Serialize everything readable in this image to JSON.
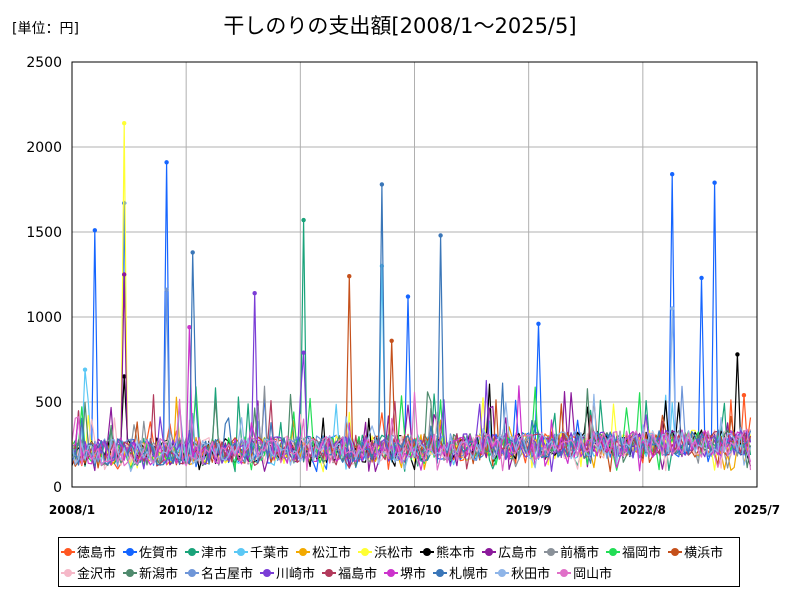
{
  "header": {
    "unit": "[単位：円]"
  },
  "chart_data": {
    "type": "line",
    "title": "干しのりの支出額[2008/1～2025/5]",
    "xlabel": "",
    "ylabel": "",
    "ylim": [
      0,
      2500
    ],
    "yticks": [
      "0",
      "500",
      "1000",
      "1500",
      "2000",
      "2500"
    ],
    "xlim": [
      "2008/1",
      "2025/7"
    ],
    "xticks": [
      "2008/1",
      "2010/12",
      "2013/11",
      "2016/10",
      "2019/9",
      "2022/8",
      "2025/7"
    ],
    "grid": true,
    "legend_position": "bottom",
    "baseline_range": [
      120,
      350
    ],
    "series": [
      {
        "name": "徳島市",
        "color": "#ff5722",
        "peaks": [
          [
            "2025/3",
            540
          ]
        ]
      },
      {
        "name": "佐賀市",
        "color": "#1565ff",
        "peaks": [
          [
            "2008/8",
            1510
          ],
          [
            "2009/5",
            1670
          ],
          [
            "2010/6",
            1910
          ],
          [
            "2016/8",
            1120
          ],
          [
            "2019/12",
            960
          ],
          [
            "2023/5",
            1840
          ],
          [
            "2024/2",
            1230
          ],
          [
            "2024/6",
            1790
          ]
        ]
      },
      {
        "name": "津市",
        "color": "#1aa37a",
        "peaks": [
          [
            "2013/12",
            1570
          ]
        ]
      },
      {
        "name": "千葉市",
        "color": "#5bc8f5",
        "peaks": [
          [
            "2008/5",
            690
          ],
          [
            "2015/12",
            1300
          ]
        ]
      },
      {
        "name": "松江市",
        "color": "#f2a900",
        "peaks": []
      },
      {
        "name": "浜松市",
        "color": "#ffff33",
        "peaks": [
          [
            "2009/5",
            2140
          ]
        ]
      },
      {
        "name": "熊本市",
        "color": "#000000",
        "peaks": [
          [
            "2009/5",
            650
          ],
          [
            "2025/1",
            780
          ]
        ]
      },
      {
        "name": "広島市",
        "color": "#8b1a9b",
        "peaks": [
          [
            "2009/5",
            1250
          ]
        ]
      },
      {
        "name": "前橋市",
        "color": "#8a9199",
        "peaks": []
      },
      {
        "name": "福岡市",
        "color": "#22dd55",
        "peaks": []
      },
      {
        "name": "横浜市",
        "color": "#c5501b",
        "peaks": [
          [
            "2015/2",
            1240
          ],
          [
            "2016/3",
            860
          ]
        ]
      },
      {
        "name": "金沢市",
        "color": "#f5b8c8",
        "peaks": []
      },
      {
        "name": "新潟市",
        "color": "#4f8a6d",
        "peaks": []
      },
      {
        "name": "名古屋市",
        "color": "#6f96d8",
        "peaks": [
          [
            "2010/6",
            1160
          ]
        ]
      },
      {
        "name": "川崎市",
        "color": "#7a3dd6",
        "peaks": [
          [
            "2012/9",
            1140
          ],
          [
            "2013/12",
            790
          ]
        ]
      },
      {
        "name": "福島市",
        "color": "#b23a5c",
        "peaks": []
      },
      {
        "name": "堺市",
        "color": "#cc33cc",
        "peaks": [
          [
            "2011/1",
            940
          ]
        ]
      },
      {
        "name": "札幌市",
        "color": "#3a76b8",
        "peaks": [
          [
            "2011/2",
            1380
          ],
          [
            "2015/12",
            1780
          ],
          [
            "2017/6",
            1480
          ]
        ]
      },
      {
        "name": "秋田市",
        "color": "#8fb5e8",
        "peaks": [
          [
            "2023/5",
            1050
          ]
        ]
      },
      {
        "name": "岡山市",
        "color": "#e070c8",
        "peaks": []
      }
    ]
  }
}
